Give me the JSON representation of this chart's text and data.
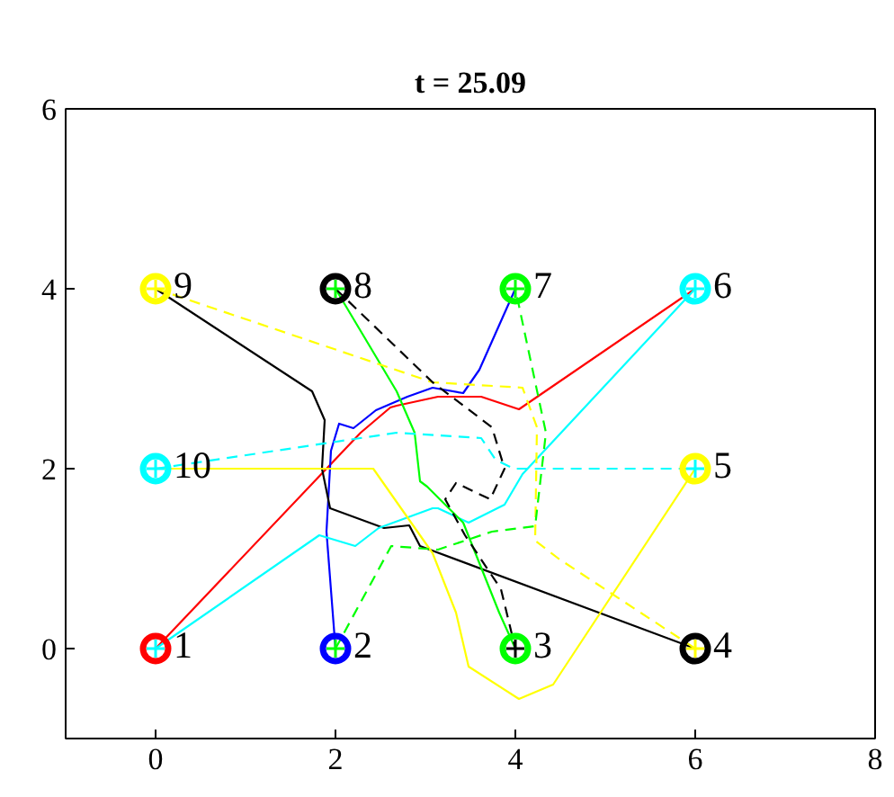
{
  "chart_data": {
    "type": "line",
    "title": "t = 25.09",
    "xlim": [
      -1,
      8
    ],
    "ylim": [
      -1,
      6
    ],
    "xticks": [
      0,
      2,
      4,
      6,
      8
    ],
    "yticks": [
      0,
      2,
      4,
      6
    ],
    "grid": false,
    "series": [
      {
        "color": "#ff0000",
        "line_style": "solid",
        "x": [
          0,
          2.28,
          2.61,
          2.68,
          3.14,
          3.62,
          4.04,
          6
        ],
        "values": [
          0,
          2.4,
          2.68,
          2.7,
          2.8,
          2.8,
          2.66,
          4
        ]
      },
      {
        "color": "#0000ff",
        "line_style": "solid",
        "x": [
          2,
          1.9,
          1.95,
          2.04,
          2.2,
          2.45,
          2.8,
          3.08,
          3.42,
          3.6,
          4
        ],
        "values": [
          0,
          1.3,
          2.2,
          2.5,
          2.45,
          2.65,
          2.8,
          2.9,
          2.84,
          3.1,
          4
        ]
      },
      {
        "color": "#000000",
        "line_style": "solid",
        "x": [
          0,
          1.74,
          1.88,
          1.85,
          1.94,
          2.54,
          2.82,
          2.94,
          6
        ],
        "values": [
          4,
          2.86,
          2.54,
          2.0,
          1.56,
          1.34,
          1.37,
          1.14,
          0
        ]
      },
      {
        "color": "#00ffff",
        "line_style": "solid",
        "x": [
          0,
          1.82,
          2.22,
          2.48,
          3.08,
          3.14,
          3.48,
          3.88,
          4.08,
          6
        ],
        "values": [
          0,
          1.26,
          1.14,
          1.34,
          1.56,
          1.56,
          1.4,
          1.6,
          1.94,
          4
        ]
      },
      {
        "color": "#ffff00",
        "line_style": "solid",
        "x": [
          0,
          1.65,
          2.42,
          3.08,
          3.34,
          3.48,
          4.04,
          4.42,
          6
        ],
        "values": [
          2,
          2.0,
          2.0,
          1.06,
          0.4,
          -0.2,
          -0.56,
          -0.4,
          2
        ]
      },
      {
        "color": "#00ff00",
        "line_style": "solid",
        "x": [
          2,
          2.68,
          2.88,
          2.94,
          3.02,
          3.42,
          3.82,
          4
        ],
        "values": [
          4,
          2.86,
          2.4,
          1.86,
          1.8,
          1.4,
          0.4,
          0
        ]
      },
      {
        "color": "#ffff00",
        "line_style": "dashed",
        "x": [
          0,
          3.08,
          4.08,
          4.24,
          4.22,
          4.48,
          6
        ],
        "values": [
          4,
          2.96,
          2.9,
          2.46,
          1.2,
          1.0,
          0
        ]
      },
      {
        "color": "#000000",
        "line_style": "dashed",
        "x": [
          2,
          3.08,
          3.74,
          3.88,
          3.72,
          3.34,
          3.22,
          3.44,
          3.84,
          4
        ],
        "values": [
          4,
          2.96,
          2.46,
          2.0,
          1.66,
          1.84,
          1.66,
          1.26,
          0.66,
          0
        ]
      },
      {
        "color": "#00ffff",
        "line_style": "dashed",
        "x": [
          0,
          2.68,
          3.62,
          3.78,
          3.98,
          6
        ],
        "values": [
          2,
          2.4,
          2.34,
          2.1,
          2.0,
          2
        ]
      },
      {
        "color": "#00ff00",
        "line_style": "dashed",
        "x": [
          2,
          2.62,
          3.14,
          3.74,
          4.22,
          4.34,
          4
        ],
        "values": [
          0,
          1.14,
          1.1,
          1.3,
          1.36,
          2.4,
          4
        ]
      },
      {
        "type": "scatter",
        "marker": "circle",
        "x": [
          0,
          2,
          4,
          6,
          6,
          6,
          4,
          2,
          0,
          0
        ],
        "values": [
          0,
          0,
          0,
          0,
          2,
          4,
          4,
          4,
          4,
          2
        ],
        "colors": [
          "#ff0000",
          "#0000ff",
          "#00ff00",
          "#000000",
          "#ffff00",
          "#00ffff",
          "#00ff00",
          "#000000",
          "#ffff00",
          "#00ffff"
        ]
      },
      {
        "type": "scatter",
        "marker": "cross",
        "x": [
          0,
          2,
          4,
          6,
          6,
          6,
          4,
          2,
          0,
          0
        ],
        "values": [
          0,
          0,
          0,
          0,
          2,
          4,
          4,
          4,
          4,
          2
        ],
        "colors": [
          "#00ffff",
          "#00ff00",
          "#000000",
          "#ffff00",
          "#00ffff",
          "#00ffff",
          "#00ff00",
          "#00ff00",
          "#ffff00",
          "#00ffff"
        ]
      }
    ],
    "annotations": [
      {
        "text": "1",
        "x": 0,
        "y": 0
      },
      {
        "text": "2",
        "x": 2,
        "y": 0
      },
      {
        "text": "3",
        "x": 4,
        "y": 0
      },
      {
        "text": "4",
        "x": 6,
        "y": 0
      },
      {
        "text": "5",
        "x": 6,
        "y": 2
      },
      {
        "text": "6",
        "x": 6,
        "y": 4
      },
      {
        "text": "7",
        "x": 4,
        "y": 4
      },
      {
        "text": "8",
        "x": 2,
        "y": 4
      },
      {
        "text": "9",
        "x": 0,
        "y": 4
      },
      {
        "text": "10",
        "x": 0,
        "y": 2
      }
    ]
  }
}
